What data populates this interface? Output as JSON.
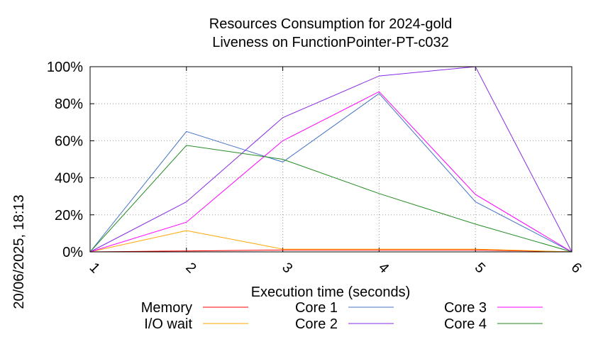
{
  "chart_data": {
    "type": "line",
    "title": "Resources Consumption for 2024-gold",
    "subtitle": "Liveness on FunctionPointer-PT-c032",
    "xlabel": "Execution time (seconds)",
    "ylabel": "",
    "side_label": "20/06/2025, 18:13",
    "x": [
      1,
      2,
      3,
      4,
      5,
      6
    ],
    "x_ticks": [
      "1",
      "2",
      "3",
      "4",
      "5",
      "6"
    ],
    "y_ticks": [
      "0%",
      "20%",
      "40%",
      "60%",
      "80%",
      "100%"
    ],
    "xlim": [
      1,
      6
    ],
    "ylim": [
      0,
      100
    ],
    "grid": true,
    "legend_position": "bottom",
    "series": [
      {
        "name": "Memory",
        "color": "#ff0000",
        "values": [
          0,
          0.5,
          1,
          1,
          1,
          0
        ]
      },
      {
        "name": "I/O wait",
        "color": "#ffa500",
        "values": [
          0,
          11.5,
          1.5,
          1.5,
          1.5,
          0
        ]
      },
      {
        "name": "Core 1",
        "color": "#4472c4",
        "values": [
          0,
          65,
          48.5,
          85.5,
          27,
          0
        ]
      },
      {
        "name": "Core 2",
        "color": "#8a2be2",
        "values": [
          0,
          27,
          72.5,
          95,
          100,
          0
        ]
      },
      {
        "name": "Core 3",
        "color": "#ff00ff",
        "values": [
          0,
          16,
          60,
          86.5,
          31,
          0
        ]
      },
      {
        "name": "Core 4",
        "color": "#228b22",
        "values": [
          0,
          57.5,
          50,
          31.5,
          15,
          0
        ]
      }
    ]
  }
}
